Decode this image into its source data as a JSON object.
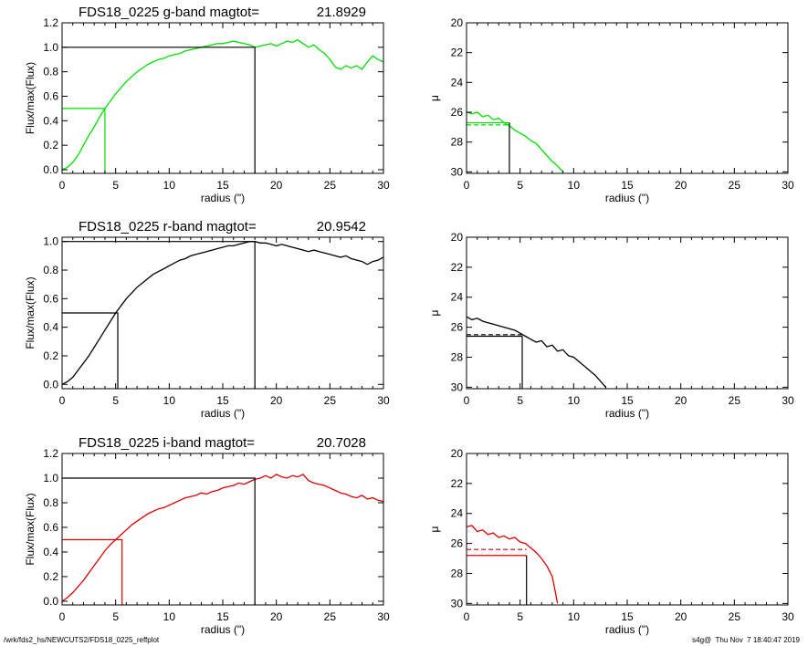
{
  "chart_data": [
    {
      "type": "line",
      "title_text": "FDS18_0225 g-band  magtot=",
      "magtot": "21.8929",
      "xlabel": "radius (\")",
      "ylabel": "Flux/max(Flux)",
      "xlim": [
        0,
        30
      ],
      "ylim": [
        -0.03,
        1.2
      ],
      "xticks": [
        "0",
        "5",
        "10",
        "15",
        "20",
        "25",
        "30"
      ],
      "yticks": [
        "0.0",
        "0.2",
        "0.4",
        "0.6",
        "0.8",
        "1.0",
        "1.2"
      ],
      "color": "#00e000",
      "half_radius": 4.0,
      "total_radius": 18.0,
      "series": [
        {
          "x": [
            0,
            0.5,
            1,
            1.5,
            2,
            2.5,
            3,
            3.5,
            4,
            4.5,
            5,
            5.5,
            6,
            6.5,
            7,
            7.5,
            8,
            8.5,
            9,
            9.5,
            10,
            10.5,
            11,
            11.5,
            12,
            12.5,
            13,
            13.5,
            14,
            14.5,
            15,
            15.5,
            16,
            16.5,
            17,
            17.5,
            18,
            18.5,
            19,
            19.5,
            20,
            20.5,
            21,
            21.5,
            22,
            22.5,
            23,
            23.5,
            24,
            24.5,
            25,
            25.5,
            26,
            26.5,
            27,
            27.5,
            28,
            28.5,
            29,
            29.5,
            30
          ],
          "y": [
            0,
            0.02,
            0.06,
            0.12,
            0.2,
            0.28,
            0.35,
            0.43,
            0.5,
            0.56,
            0.62,
            0.67,
            0.72,
            0.76,
            0.8,
            0.83,
            0.86,
            0.88,
            0.9,
            0.91,
            0.93,
            0.94,
            0.95,
            0.97,
            0.98,
            0.99,
            1.0,
            1.01,
            1.02,
            1.03,
            1.03,
            1.04,
            1.05,
            1.04,
            1.03,
            1.02,
            1.0,
            1.01,
            1.02,
            1.03,
            1.01,
            1.03,
            1.05,
            1.04,
            1.06,
            1.03,
            1.0,
            1.02,
            0.98,
            0.95,
            0.9,
            0.84,
            0.82,
            0.85,
            0.83,
            0.85,
            0.82,
            0.88,
            0.93,
            0.9,
            0.88
          ]
        }
      ]
    },
    {
      "type": "line",
      "ylabel": "μ",
      "xlabel": "radius (\")",
      "xlim": [
        0,
        30
      ],
      "ylim": [
        30.1,
        20
      ],
      "xticks": [
        "0",
        "5",
        "10",
        "15",
        "20",
        "25",
        "30"
      ],
      "yticks": [
        "20",
        "22",
        "24",
        "26",
        "28",
        "30"
      ],
      "color": "#00e000",
      "half_radius": 4.0,
      "mu_half": 26.7,
      "mu_mean": 26.85,
      "series": [
        {
          "x": [
            0,
            0.5,
            1,
            1.5,
            2,
            2.5,
            3,
            3.5,
            4,
            4.5,
            5,
            5.5,
            6,
            6.5,
            7,
            7.5,
            8,
            8.5,
            9
          ],
          "y": [
            26.0,
            26.1,
            26.0,
            26.3,
            26.2,
            26.5,
            26.4,
            26.7,
            26.9,
            27.2,
            27.4,
            27.6,
            27.9,
            28.1,
            28.5,
            28.9,
            29.3,
            29.6,
            30.0
          ]
        }
      ]
    },
    {
      "type": "line",
      "title_text": "FDS18_0225 r-band  magtot=",
      "magtot": "20.9542",
      "xlabel": "radius (\")",
      "ylabel": "Flux/max(Flux)",
      "xlim": [
        0,
        30
      ],
      "ylim": [
        -0.03,
        1.03
      ],
      "xticks": [
        "0",
        "5",
        "10",
        "15",
        "20",
        "25",
        "30"
      ],
      "yticks": [
        "0.0",
        "0.2",
        "0.4",
        "0.6",
        "0.8",
        "1.0"
      ],
      "color": "#000000",
      "half_radius": 5.2,
      "total_radius": 18.0,
      "series": [
        {
          "x": [
            0,
            0.5,
            1,
            1.5,
            2,
            2.5,
            3,
            3.5,
            4,
            4.5,
            5,
            5.5,
            6,
            6.5,
            7,
            7.5,
            8,
            8.5,
            9,
            9.5,
            10,
            10.5,
            11,
            11.5,
            12,
            12.5,
            13,
            13.5,
            14,
            14.5,
            15,
            15.5,
            16,
            16.5,
            17,
            17.5,
            18,
            18.5,
            19,
            19.5,
            20,
            20.5,
            21,
            21.5,
            22,
            22.5,
            23,
            23.5,
            24,
            24.5,
            25,
            25.5,
            26,
            26.5,
            27,
            27.5,
            28,
            28.5,
            29,
            29.5,
            30
          ],
          "y": [
            0,
            0.02,
            0.05,
            0.1,
            0.15,
            0.2,
            0.26,
            0.32,
            0.38,
            0.44,
            0.5,
            0.55,
            0.6,
            0.64,
            0.68,
            0.71,
            0.74,
            0.77,
            0.79,
            0.81,
            0.83,
            0.85,
            0.87,
            0.88,
            0.9,
            0.91,
            0.92,
            0.93,
            0.94,
            0.95,
            0.96,
            0.97,
            0.97,
            0.98,
            0.99,
            1.0,
            1.0,
            0.99,
            0.99,
            0.98,
            0.97,
            0.98,
            0.97,
            0.96,
            0.95,
            0.94,
            0.93,
            0.94,
            0.93,
            0.92,
            0.91,
            0.9,
            0.89,
            0.9,
            0.88,
            0.87,
            0.86,
            0.84,
            0.86,
            0.87,
            0.89
          ]
        }
      ]
    },
    {
      "type": "line",
      "ylabel": "μ",
      "xlabel": "radius (\")",
      "xlim": [
        0,
        30
      ],
      "ylim": [
        30.1,
        20
      ],
      "xticks": [
        "0",
        "5",
        "10",
        "15",
        "20",
        "25",
        "30"
      ],
      "yticks": [
        "20",
        "22",
        "24",
        "26",
        "28",
        "30"
      ],
      "color": "#000000",
      "half_radius": 5.2,
      "mu_half": 26.6,
      "mu_mean": 26.5,
      "series": [
        {
          "x": [
            0,
            0.5,
            1,
            1.5,
            2,
            2.5,
            3,
            3.5,
            4,
            4.5,
            5,
            5.5,
            6,
            6.5,
            7,
            7.5,
            8,
            8.5,
            9,
            9.5,
            10,
            10.5,
            11,
            11.5,
            12,
            12.5,
            13
          ],
          "y": [
            25.3,
            25.5,
            25.4,
            25.6,
            25.7,
            25.8,
            25.9,
            26.0,
            26.1,
            26.2,
            26.4,
            26.6,
            26.8,
            27.0,
            26.9,
            27.3,
            27.2,
            27.6,
            27.5,
            27.9,
            28.0,
            28.3,
            28.6,
            28.9,
            29.2,
            29.6,
            30.0
          ]
        }
      ]
    },
    {
      "type": "line",
      "title_text": "FDS18_0225 i-band  magtot=",
      "magtot": "20.7028",
      "xlabel": "radius (\")",
      "ylabel": "Flux/max(Flux)",
      "xlim": [
        0,
        30
      ],
      "ylim": [
        -0.03,
        1.2
      ],
      "xticks": [
        "0",
        "5",
        "10",
        "15",
        "20",
        "25",
        "30"
      ],
      "yticks": [
        "0.0",
        "0.2",
        "0.4",
        "0.6",
        "0.8",
        "1.0",
        "1.2"
      ],
      "color": "#e00000",
      "half_radius": 5.6,
      "total_radius": 18.0,
      "series": [
        {
          "x": [
            0,
            0.5,
            1,
            1.5,
            2,
            2.5,
            3,
            3.5,
            4,
            4.5,
            5,
            5.5,
            6,
            6.5,
            7,
            7.5,
            8,
            8.5,
            9,
            9.5,
            10,
            10.5,
            11,
            11.5,
            12,
            12.5,
            13,
            13.5,
            14,
            14.5,
            15,
            15.5,
            16,
            16.5,
            17,
            17.5,
            18,
            18.5,
            19,
            19.5,
            20,
            20.5,
            21,
            21.5,
            22,
            22.5,
            23,
            23.5,
            24,
            24.5,
            25,
            25.5,
            26,
            26.5,
            27,
            27.5,
            28,
            28.5,
            29,
            29.5,
            30
          ],
          "y": [
            0,
            0.03,
            0.07,
            0.12,
            0.17,
            0.23,
            0.29,
            0.35,
            0.41,
            0.46,
            0.5,
            0.54,
            0.58,
            0.62,
            0.65,
            0.68,
            0.71,
            0.73,
            0.75,
            0.76,
            0.78,
            0.8,
            0.82,
            0.84,
            0.85,
            0.86,
            0.88,
            0.87,
            0.89,
            0.9,
            0.92,
            0.93,
            0.94,
            0.96,
            0.95,
            0.97,
            0.99,
            1.0,
            1.02,
            1.0,
            1.03,
            1.01,
            1.0,
            1.02,
            1.01,
            1.03,
            0.98,
            0.96,
            0.95,
            0.94,
            0.92,
            0.9,
            0.88,
            0.87,
            0.85,
            0.84,
            0.86,
            0.83,
            0.84,
            0.82,
            0.81
          ]
        }
      ]
    },
    {
      "type": "line",
      "ylabel": "μ",
      "xlabel": "radius (\")",
      "xlim": [
        0,
        30
      ],
      "ylim": [
        30.1,
        20
      ],
      "xticks": [
        "0",
        "5",
        "10",
        "15",
        "20",
        "25",
        "30"
      ],
      "yticks": [
        "20",
        "22",
        "24",
        "26",
        "28",
        "30"
      ],
      "color": "#e00000",
      "half_radius": 5.6,
      "mu_half": 26.8,
      "mu_mean": 26.4,
      "series": [
        {
          "x": [
            0,
            0.5,
            1,
            1.5,
            2,
            2.5,
            3,
            3.5,
            4,
            4.5,
            5,
            5.5,
            6,
            6.5,
            7,
            7.5,
            8,
            8.5
          ],
          "y": [
            24.9,
            24.8,
            25.2,
            25.1,
            25.4,
            25.3,
            25.6,
            25.5,
            25.7,
            25.6,
            25.9,
            26.0,
            26.3,
            26.6,
            27.0,
            27.5,
            28.2,
            30.0
          ]
        }
      ]
    }
  ],
  "footer": {
    "left": "/wrk/fds2_hs/NEWCUTS2/FDS18_0225_reffplot",
    "right": "s4g@  Thu Nov  7 18:40:47 2019"
  }
}
